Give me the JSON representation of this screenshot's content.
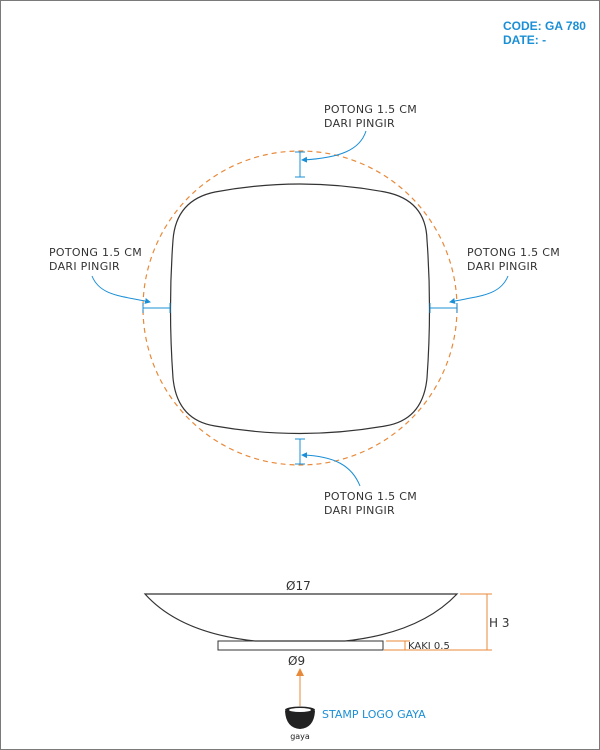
{
  "header": {
    "code": "CODE: GA 780",
    "date": "DATE: -"
  },
  "callouts": {
    "top": {
      "line1": "POTONG 1.5 CM",
      "line2": "DARI PINGIR"
    },
    "left": {
      "line1": "POTONG 1.5 CM",
      "line2": "DARI PINGIR"
    },
    "right": {
      "line1": "POTONG 1.5 CM",
      "line2": "DARI PINGIR"
    },
    "bottom": {
      "line1": "POTONG 1.5 CM",
      "line2": "DARI PINGIR"
    }
  },
  "side_view": {
    "diameter_top": "Ø17",
    "diameter_foot": "Ø9",
    "height": "H 3",
    "foot": "KAKI 0.5"
  },
  "stamp": {
    "label": "STAMP LOGO GAYA",
    "logo_text": "gaya"
  },
  "colors": {
    "accent_blue": "#1b8fd6",
    "guide_orange": "#e8893a",
    "outline": "#333333"
  }
}
